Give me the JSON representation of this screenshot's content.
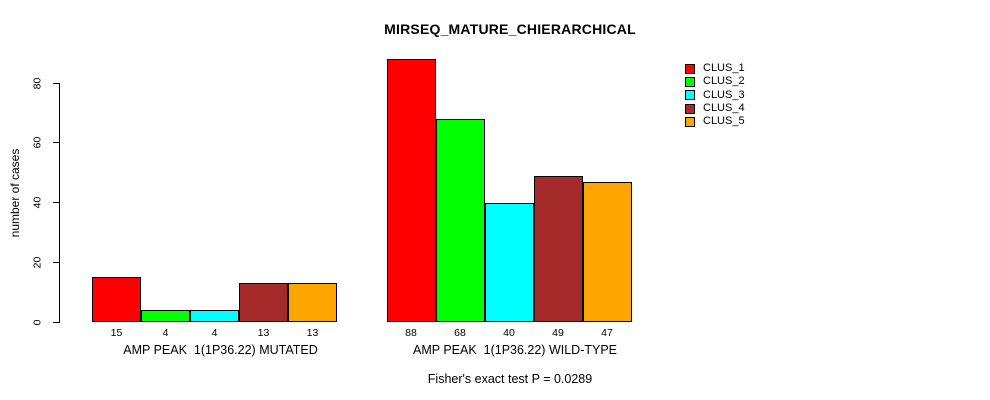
{
  "chart_data": {
    "type": "bar",
    "title": "MIRSEQ_MATURE_CHIERARCHICAL",
    "xlabel": "",
    "ylabel": "number of cases",
    "ylim": [
      0,
      88
    ],
    "yticks": [
      0,
      20,
      40,
      60,
      80
    ],
    "grid": false,
    "legend_position": "top-right-inside",
    "series": [
      {
        "name": "CLUS_1",
        "color": "#FF0000"
      },
      {
        "name": "CLUS_2",
        "color": "#00FF00"
      },
      {
        "name": "CLUS_3",
        "color": "#00FFFF"
      },
      {
        "name": "CLUS_4",
        "color": "#A52A2A"
      },
      {
        "name": "CLUS_5",
        "color": "#FFA500"
      }
    ],
    "categories": [
      "AMP PEAK  1(1P36.22) MUTATED",
      "AMP PEAK  1(1P36.22) WILD-TYPE"
    ],
    "groups": [
      {
        "label": "AMP PEAK  1(1P36.22) MUTATED",
        "values": [
          15,
          4,
          4,
          13,
          13
        ]
      },
      {
        "label": "AMP PEAK  1(1P36.22) WILD-TYPE",
        "values": [
          88,
          68,
          40,
          49,
          47
        ]
      }
    ],
    "footnote": "Fisher's exact test P = 0.0289",
    "bar_border_color": "#000000",
    "text_color": "#000000",
    "background_color": "#FFFFFF"
  }
}
